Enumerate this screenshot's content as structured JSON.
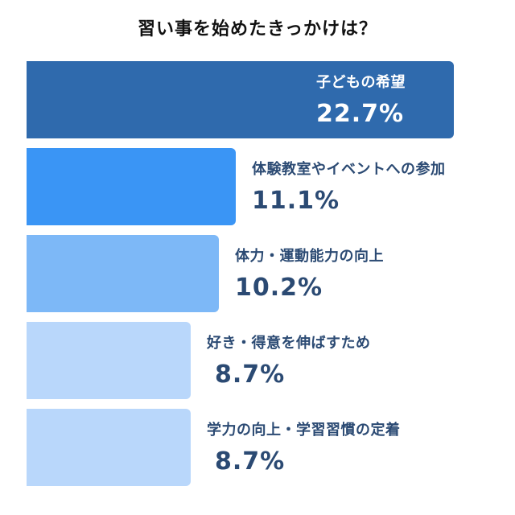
{
  "title": "習い事を始めたきっかけは？",
  "chart_data": {
    "type": "bar",
    "orientation": "horizontal",
    "title": "習い事を始めたきっかけは？",
    "categories": [
      "子どもの希望",
      "体験教室やイベントへの参加",
      "体力・運動能力の向上",
      "好き・得意を伸ばすため",
      "学力の向上・学習習慣の定着"
    ],
    "values": [
      22.7,
      11.1,
      10.2,
      8.7,
      8.7
    ],
    "value_labels": [
      "22.7%",
      "11.1%",
      "10.2%",
      "8.7%",
      "8.7%"
    ],
    "unit": "%",
    "colors": [
      "#2f6aad",
      "#3a95f5",
      "#7db8f7",
      "#b9d7fb",
      "#b9d7fb"
    ],
    "grid": false,
    "legend": "none"
  }
}
